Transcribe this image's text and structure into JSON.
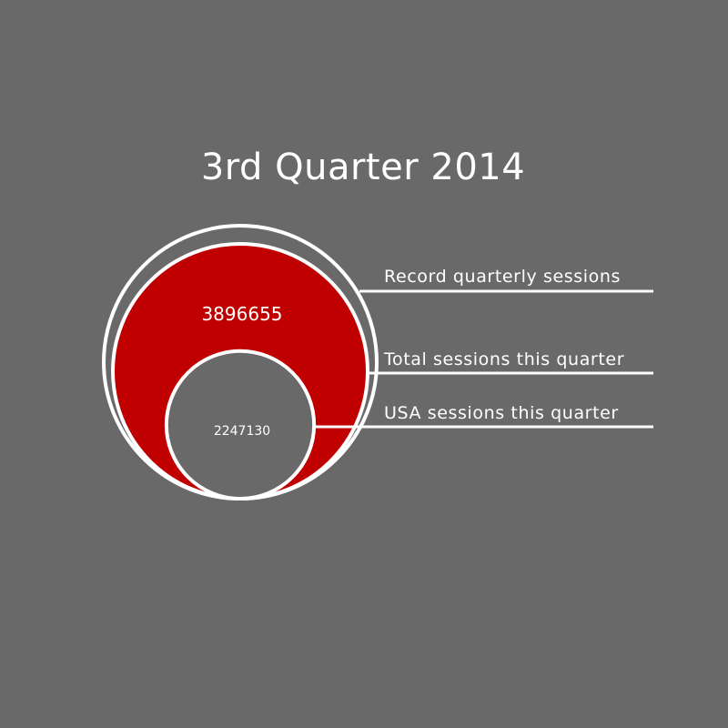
{
  "chart_data": {
    "type": "nested-circles",
    "title": "3rd Quarter 2014",
    "series": [
      {
        "name": "Record quarterly sessions",
        "value": null
      },
      {
        "name": "Total sessions this quarter",
        "value": 3896655,
        "label": "3896655"
      },
      {
        "name": "USA sessions this quarter",
        "value": 2247130,
        "label": "2247130"
      }
    ],
    "colors": {
      "background": "#696969",
      "total_fill": "#c00000",
      "usa_fill": "#696969",
      "record_fill": "#696969",
      "stroke": "#ffffff"
    }
  }
}
